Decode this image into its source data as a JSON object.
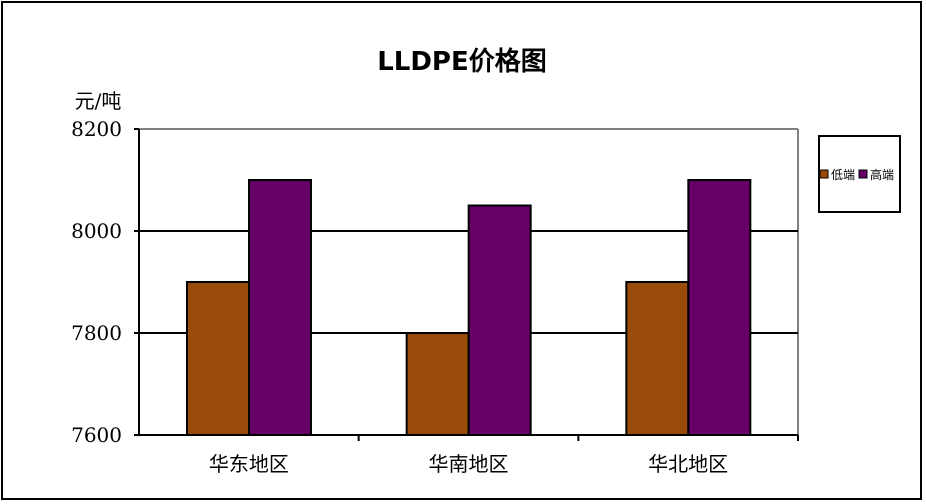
{
  "chart_data": {
    "type": "bar",
    "title": "LLDPE价格图",
    "ylabel": "元/吨",
    "xlabel": "",
    "categories": [
      "华东地区",
      "华南地区",
      "华北地区"
    ],
    "series": [
      {
        "name": "低端",
        "values": [
          7900,
          7800,
          7900
        ],
        "color": "#994C0A"
      },
      {
        "name": "高端",
        "values": [
          8100,
          8050,
          8100
        ],
        "color": "#660066"
      }
    ],
    "ylim": [
      7600,
      8200
    ],
    "yticks": [
      7600,
      7800,
      8000,
      8200
    ],
    "ytick_labels": [
      "7600",
      "7800",
      "8000",
      "8200"
    ],
    "grid": true,
    "legend_position": "right"
  }
}
